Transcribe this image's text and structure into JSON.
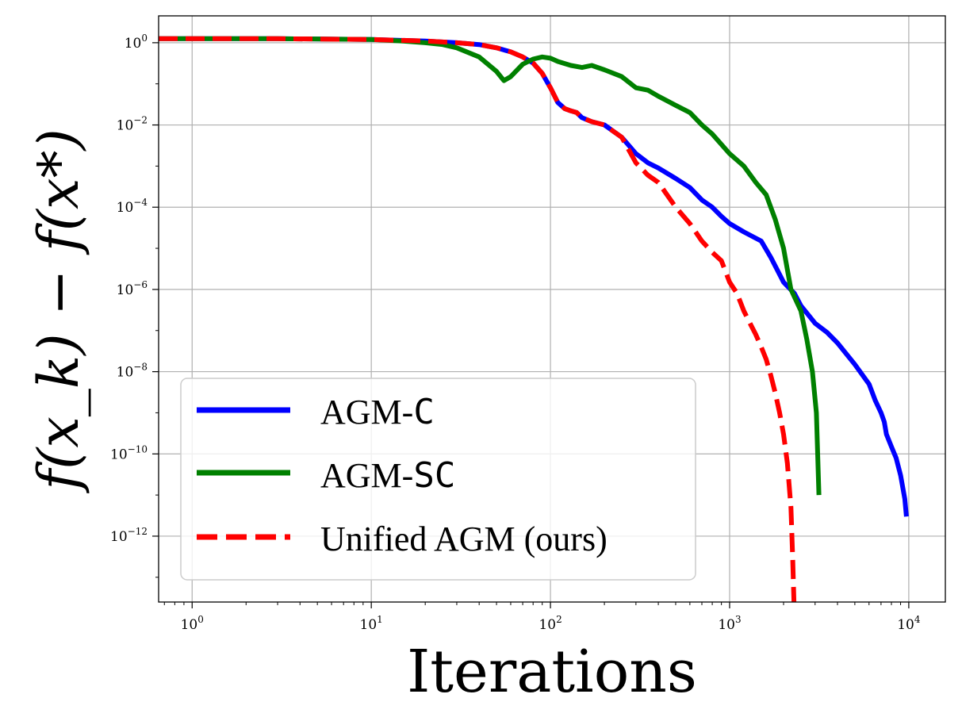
{
  "chart_data": {
    "type": "line",
    "title": "",
    "xlabel": "Iterations",
    "ylabel": "f(x_k) − f(x*)",
    "xscale": "log",
    "yscale": "log",
    "xlim": [
      0.65,
      16000
    ],
    "ylim": [
      2.5e-14,
      4.5
    ],
    "grid": true,
    "legend_placement": "lower-left",
    "x_ticks": [
      {
        "base": "10",
        "exp": "0",
        "value": 1
      },
      {
        "base": "10",
        "exp": "1",
        "value": 10
      },
      {
        "base": "10",
        "exp": "2",
        "value": 100
      },
      {
        "base": "10",
        "exp": "3",
        "value": 1000
      },
      {
        "base": "10",
        "exp": "4",
        "value": 10000
      }
    ],
    "y_ticks": [
      {
        "base": "10",
        "exp": "0",
        "value": 1
      },
      {
        "base": "10",
        "exp": "−2",
        "value": 0.01
      },
      {
        "base": "10",
        "exp": "−4",
        "value": 0.0001
      },
      {
        "base": "10",
        "exp": "−6",
        "value": 1e-06
      },
      {
        "base": "10",
        "exp": "−8",
        "value": 1e-08
      },
      {
        "base": "10",
        "exp": "−10",
        "value": 1e-10
      },
      {
        "base": "10",
        "exp": "−12",
        "value": 1e-12
      }
    ],
    "series": [
      {
        "name_prefix": "AGM-",
        "name_suffix": "C",
        "color": "#0000ff",
        "style": "solid",
        "x": [
          0.65,
          1,
          3,
          10,
          20,
          30,
          40,
          50,
          60,
          70,
          80,
          90,
          100,
          110,
          120,
          130,
          140,
          150,
          170,
          200,
          250,
          300,
          350,
          400,
          500,
          600,
          700,
          800,
          900,
          1000,
          1200,
          1500,
          1700,
          2000,
          2300,
          2500,
          3000,
          3500,
          4000,
          5000,
          6000,
          6500,
          7000,
          7300,
          7500,
          8000,
          8500,
          9000,
          9500,
          9700
        ],
        "y": [
          1.25,
          1.25,
          1.25,
          1.2,
          1.1,
          1.0,
          0.9,
          0.75,
          0.6,
          0.45,
          0.32,
          0.18,
          0.08,
          0.035,
          0.025,
          0.022,
          0.02,
          0.015,
          0.012,
          0.01,
          0.005,
          0.002,
          0.0012,
          0.0009,
          0.0005,
          0.0003,
          0.00015,
          0.0001,
          6e-05,
          4e-05,
          2.5e-05,
          1.5e-05,
          6e-06,
          1.5e-06,
          8e-07,
          4e-07,
          1.5e-07,
          9e-08,
          5e-08,
          1.5e-08,
          5e-09,
          2e-09,
          1e-09,
          6e-10,
          3e-10,
          1.5e-10,
          8e-11,
          3e-11,
          8e-12,
          3e-12
        ]
      },
      {
        "name_prefix": "AGM-",
        "name_suffix": "SC",
        "color": "#008000",
        "style": "solid",
        "x": [
          0.65,
          1,
          3,
          10,
          15,
          20,
          25,
          30,
          40,
          50,
          55,
          60,
          70,
          80,
          90,
          100,
          110,
          130,
          150,
          170,
          200,
          250,
          300,
          350,
          400,
          500,
          600,
          700,
          800,
          1000,
          1200,
          1400,
          1600,
          1800,
          2000,
          2200,
          2500,
          2700,
          2900,
          3050,
          3150
        ],
        "y": [
          1.25,
          1.25,
          1.25,
          1.2,
          1.1,
          1.0,
          0.9,
          0.75,
          0.45,
          0.2,
          0.12,
          0.15,
          0.3,
          0.4,
          0.45,
          0.42,
          0.35,
          0.28,
          0.25,
          0.28,
          0.22,
          0.15,
          0.08,
          0.07,
          0.05,
          0.03,
          0.02,
          0.01,
          0.006,
          0.002,
          0.001,
          0.0004,
          0.0002,
          5e-05,
          1e-05,
          1e-06,
          3e-07,
          6e-08,
          1e-08,
          1e-09,
          1e-11
        ]
      },
      {
        "name": "Unified AGM (ours)",
        "color": "#ff0000",
        "style": "dashed",
        "x": [
          0.65,
          1,
          3,
          10,
          20,
          30,
          40,
          50,
          60,
          70,
          80,
          90,
          100,
          110,
          120,
          130,
          140,
          150,
          170,
          200,
          250,
          300,
          350,
          400,
          500,
          600,
          700,
          800,
          900,
          1000,
          1100,
          1200,
          1300,
          1400,
          1500,
          1600,
          1700,
          1800,
          1900,
          2000,
          2100,
          2200,
          2250,
          2300
        ],
        "y": [
          1.25,
          1.25,
          1.25,
          1.2,
          1.1,
          1.0,
          0.9,
          0.75,
          0.6,
          0.45,
          0.32,
          0.18,
          0.08,
          0.035,
          0.025,
          0.022,
          0.02,
          0.015,
          0.012,
          0.01,
          0.005,
          0.0012,
          0.0006,
          0.0004,
          0.0001,
          4e-05,
          1.5e-05,
          8e-06,
          5e-06,
          1.5e-06,
          8e-07,
          3e-07,
          1.5e-07,
          8e-08,
          4e-08,
          2e-08,
          8e-09,
          3e-09,
          1e-09,
          3e-10,
          6e-11,
          5e-12,
          3e-13,
          1e-14
        ]
      }
    ]
  }
}
